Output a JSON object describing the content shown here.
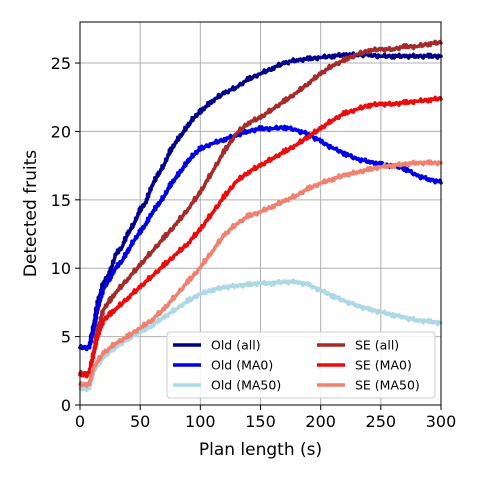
{
  "chart_data": {
    "type": "line",
    "title": "",
    "xlabel": "Plan length (s)",
    "ylabel": "Detected fruits",
    "xlim": [
      0,
      300
    ],
    "ylim": [
      0,
      28
    ],
    "xticks": [
      0,
      50,
      100,
      150,
      200,
      250,
      300
    ],
    "yticks": [
      0,
      5,
      10,
      15,
      20,
      25
    ],
    "grid": true,
    "legend": {
      "placement": "lower-right",
      "columns": 2
    },
    "series": [
      {
        "name": "Old (all)",
        "color": "#00008b",
        "x": [
          0,
          8,
          12,
          15,
          20,
          25,
          30,
          35,
          40,
          45,
          50,
          55,
          60,
          65,
          70,
          75,
          80,
          85,
          90,
          95,
          100,
          105,
          110,
          120,
          130,
          140,
          150,
          160,
          170,
          180,
          190,
          200,
          210,
          220,
          230,
          240,
          250,
          260,
          270,
          280,
          290,
          300
        ],
        "y": [
          4.2,
          4.2,
          6.0,
          7.5,
          9.0,
          9.6,
          11.0,
          11.5,
          12.5,
          13.2,
          14.2,
          14.8,
          16.0,
          16.8,
          17.5,
          18.5,
          19.2,
          19.8,
          20.4,
          21.0,
          21.4,
          21.8,
          22.2,
          22.8,
          23.2,
          23.8,
          24.2,
          24.6,
          25.0,
          25.2,
          25.3,
          25.4,
          25.5,
          25.6,
          25.6,
          25.6,
          25.5,
          25.5,
          25.5,
          25.5,
          25.5,
          25.5
        ]
      },
      {
        "name": "Old (MA0)",
        "color": "#0000e6",
        "x": [
          0,
          8,
          12,
          15,
          20,
          25,
          30,
          35,
          40,
          45,
          50,
          55,
          60,
          65,
          70,
          75,
          80,
          85,
          90,
          95,
          100,
          110,
          120,
          130,
          140,
          150,
          160,
          170,
          180,
          190,
          200,
          210,
          220,
          230,
          240,
          250,
          260,
          270,
          280,
          290,
          300
        ],
        "y": [
          4.2,
          4.2,
          5.5,
          7.0,
          8.5,
          9.2,
          10.0,
          10.5,
          11.2,
          12.0,
          12.6,
          13.2,
          14.0,
          14.6,
          15.2,
          16.0,
          16.6,
          17.2,
          17.8,
          18.3,
          18.7,
          19.1,
          19.4,
          19.7,
          20.0,
          20.2,
          20.2,
          20.3,
          20.1,
          19.8,
          19.3,
          18.8,
          18.4,
          18.0,
          17.8,
          17.6,
          17.5,
          17.3,
          16.8,
          16.5,
          16.3
        ]
      },
      {
        "name": "Old (MA50)",
        "color": "#add8e6",
        "x": [
          0,
          8,
          12,
          20,
          30,
          40,
          50,
          60,
          70,
          80,
          90,
          100,
          110,
          120,
          130,
          140,
          150,
          160,
          170,
          180,
          190,
          200,
          210,
          220,
          230,
          240,
          250,
          260,
          270,
          280,
          290,
          300
        ],
        "y": [
          1.2,
          1.2,
          2.5,
          3.5,
          4.2,
          4.8,
          5.3,
          5.8,
          6.4,
          7.0,
          7.6,
          8.1,
          8.4,
          8.6,
          8.7,
          8.8,
          8.9,
          8.9,
          9.0,
          9.0,
          8.8,
          8.4,
          8.0,
          7.6,
          7.3,
          7.0,
          6.8,
          6.6,
          6.4,
          6.2,
          6.1,
          6.0
        ]
      },
      {
        "name": "SE (all)",
        "color": "#a52a2a",
        "x": [
          0,
          8,
          12,
          15,
          20,
          25,
          30,
          40,
          50,
          60,
          70,
          80,
          90,
          100,
          110,
          120,
          130,
          140,
          150,
          160,
          170,
          180,
          190,
          200,
          210,
          220,
          230,
          240,
          250,
          260,
          270,
          280,
          290,
          300
        ],
        "y": [
          2.3,
          2.3,
          4.0,
          5.5,
          7.0,
          7.6,
          8.2,
          9.2,
          10.2,
          11.2,
          12.2,
          13.2,
          14.3,
          15.5,
          17.0,
          18.5,
          19.8,
          20.6,
          21.0,
          21.6,
          22.2,
          22.8,
          23.5,
          24.2,
          24.8,
          25.2,
          25.6,
          25.9,
          26.0,
          26.0,
          26.2,
          26.2,
          26.4,
          26.5
        ]
      },
      {
        "name": "SE (MA0)",
        "color": "#ee0a0a",
        "x": [
          0,
          8,
          12,
          15,
          20,
          25,
          30,
          40,
          50,
          60,
          70,
          80,
          90,
          100,
          110,
          120,
          130,
          140,
          150,
          160,
          170,
          180,
          190,
          200,
          210,
          220,
          230,
          240,
          250,
          260,
          270,
          280,
          290,
          300
        ],
        "y": [
          2.2,
          2.2,
          3.8,
          5.0,
          6.2,
          6.6,
          7.0,
          7.8,
          8.6,
          9.4,
          10.2,
          11.0,
          11.8,
          12.8,
          14.0,
          15.2,
          16.3,
          17.0,
          17.5,
          18.0,
          18.5,
          19.0,
          19.6,
          20.2,
          20.8,
          21.3,
          21.6,
          21.9,
          22.0,
          22.0,
          22.1,
          22.2,
          22.3,
          22.4
        ]
      },
      {
        "name": "SE (MA50)",
        "color": "#f08070",
        "x": [
          0,
          8,
          12,
          20,
          30,
          40,
          50,
          60,
          70,
          80,
          90,
          100,
          110,
          120,
          130,
          140,
          150,
          160,
          170,
          180,
          190,
          200,
          210,
          220,
          230,
          240,
          250,
          260,
          270,
          280,
          290,
          300
        ],
        "y": [
          1.5,
          1.5,
          2.8,
          3.8,
          4.5,
          5.0,
          5.6,
          6.2,
          7.0,
          8.0,
          9.0,
          10.0,
          11.2,
          12.4,
          13.2,
          13.8,
          14.1,
          14.5,
          14.9,
          15.3,
          15.8,
          16.2,
          16.5,
          16.8,
          17.0,
          17.2,
          17.4,
          17.5,
          17.6,
          17.7,
          17.7,
          17.7
        ]
      }
    ]
  }
}
